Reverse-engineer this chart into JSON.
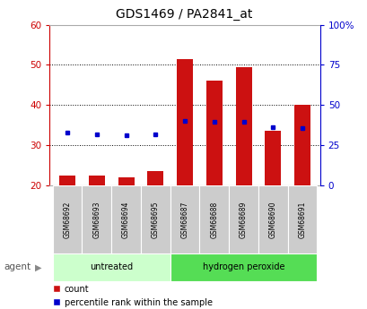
{
  "title": "GDS1469 / PA2841_at",
  "samples": [
    "GSM68692",
    "GSM68693",
    "GSM68694",
    "GSM68695",
    "GSM68687",
    "GSM68688",
    "GSM68689",
    "GSM68690",
    "GSM68691"
  ],
  "counts": [
    22.5,
    22.5,
    22.0,
    23.5,
    51.5,
    46.0,
    49.5,
    33.5,
    40.0
  ],
  "percentiles": [
    33.0,
    31.5,
    31.0,
    31.5,
    40.0,
    39.5,
    39.5,
    36.5,
    35.5
  ],
  "bar_color": "#cc1111",
  "dot_color": "#0000cc",
  "ylim_left": [
    20,
    60
  ],
  "ylim_right": [
    0,
    100
  ],
  "yticks_left": [
    20,
    30,
    40,
    50,
    60
  ],
  "yticks_right": [
    0,
    25,
    50,
    75,
    100
  ],
  "ytick_labels_right": [
    "0",
    "25",
    "50",
    "75",
    "100%"
  ],
  "bar_bottom": 20,
  "tick_color_left": "#cc0000",
  "tick_color_right": "#0000cc",
  "agent_label": "agent",
  "legend_count_label": "count",
  "legend_percentile_label": "percentile rank within the sample",
  "untreated_color": "#ccffcc",
  "h2o2_color": "#55dd55",
  "sample_bg_color": "#cccccc",
  "figsize": [
    4.1,
    3.45
  ],
  "dpi": 100
}
